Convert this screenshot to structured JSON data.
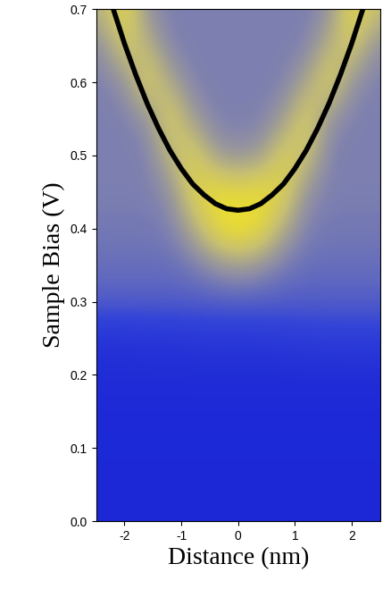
{
  "chart_data": {
    "type": "heatmap",
    "x_label": "Distance (nm)",
    "y_label": "Sample Bias (V)",
    "xlim": [
      -2.5,
      2.5
    ],
    "ylim": [
      0.0,
      0.7
    ],
    "xticks": [
      -2,
      -1,
      0,
      1,
      2
    ],
    "yticks": [
      0.0,
      0.1,
      0.2,
      0.3,
      0.4,
      0.5,
      0.6,
      0.7
    ],
    "cells": {
      "x": [
        -2.4,
        -2.0,
        -1.6,
        -1.2,
        -0.8,
        -0.4,
        0.0,
        0.4,
        0.8,
        1.2,
        1.6,
        2.0,
        2.4
      ],
      "y": [
        0.0,
        0.05,
        0.1,
        0.15,
        0.2,
        0.25,
        0.3,
        0.35,
        0.4,
        0.45,
        0.5,
        0.55,
        0.6,
        0.65,
        0.7
      ],
      "values": [
        [
          0.05,
          0.05,
          0.05,
          0.05,
          0.05,
          0.05,
          0.05,
          0.05,
          0.05,
          0.05,
          0.05,
          0.05,
          0.05
        ],
        [
          0.05,
          0.05,
          0.05,
          0.05,
          0.05,
          0.05,
          0.05,
          0.05,
          0.05,
          0.05,
          0.05,
          0.05,
          0.05
        ],
        [
          0.06,
          0.06,
          0.06,
          0.06,
          0.06,
          0.06,
          0.06,
          0.06,
          0.06,
          0.06,
          0.06,
          0.06,
          0.06
        ],
        [
          0.06,
          0.06,
          0.06,
          0.06,
          0.06,
          0.06,
          0.06,
          0.06,
          0.06,
          0.06,
          0.06,
          0.06,
          0.06
        ],
        [
          0.08,
          0.08,
          0.08,
          0.08,
          0.08,
          0.08,
          0.08,
          0.08,
          0.08,
          0.08,
          0.08,
          0.08,
          0.08
        ],
        [
          0.12,
          0.12,
          0.13,
          0.13,
          0.14,
          0.15,
          0.15,
          0.15,
          0.16,
          0.17,
          0.18,
          0.18,
          0.18
        ],
        [
          0.3,
          0.3,
          0.3,
          0.3,
          0.3,
          0.3,
          0.3,
          0.3,
          0.3,
          0.3,
          0.3,
          0.3,
          0.3
        ],
        [
          0.35,
          0.35,
          0.35,
          0.35,
          0.38,
          0.45,
          0.5,
          0.45,
          0.38,
          0.35,
          0.35,
          0.35,
          0.35
        ],
        [
          0.38,
          0.38,
          0.38,
          0.4,
          0.55,
          0.8,
          0.9,
          0.8,
          0.55,
          0.4,
          0.38,
          0.38,
          0.38
        ],
        [
          0.4,
          0.4,
          0.4,
          0.45,
          0.75,
          0.85,
          0.8,
          0.85,
          0.75,
          0.45,
          0.4,
          0.4,
          0.4
        ],
        [
          0.4,
          0.4,
          0.4,
          0.6,
          0.75,
          0.5,
          0.45,
          0.5,
          0.75,
          0.65,
          0.4,
          0.4,
          0.4
        ],
        [
          0.4,
          0.4,
          0.45,
          0.75,
          0.5,
          0.4,
          0.4,
          0.4,
          0.5,
          0.75,
          0.45,
          0.4,
          0.4
        ],
        [
          0.4,
          0.45,
          0.75,
          0.55,
          0.4,
          0.4,
          0.4,
          0.4,
          0.4,
          0.55,
          0.75,
          0.45,
          0.4
        ],
        [
          0.45,
          0.7,
          0.6,
          0.4,
          0.4,
          0.4,
          0.4,
          0.4,
          0.4,
          0.4,
          0.6,
          0.7,
          0.45
        ],
        [
          0.6,
          0.8,
          0.45,
          0.4,
          0.4,
          0.4,
          0.4,
          0.4,
          0.4,
          0.4,
          0.45,
          0.8,
          0.65
        ]
      ]
    },
    "fit": {
      "color": "#000000",
      "x": [
        -2.2,
        -2.0,
        -1.8,
        -1.6,
        -1.4,
        -1.2,
        -1.0,
        -0.8,
        -0.6,
        -0.4,
        -0.2,
        0.0,
        0.2,
        0.4,
        0.6,
        0.8,
        1.0,
        1.2,
        1.4,
        1.6,
        1.8,
        2.0,
        2.2
      ],
      "values": [
        0.701,
        0.653,
        0.61,
        0.571,
        0.537,
        0.507,
        0.482,
        0.461,
        0.446,
        0.434,
        0.427,
        0.425,
        0.427,
        0.434,
        0.446,
        0.461,
        0.482,
        0.507,
        0.537,
        0.571,
        0.61,
        0.653,
        0.701
      ]
    }
  }
}
